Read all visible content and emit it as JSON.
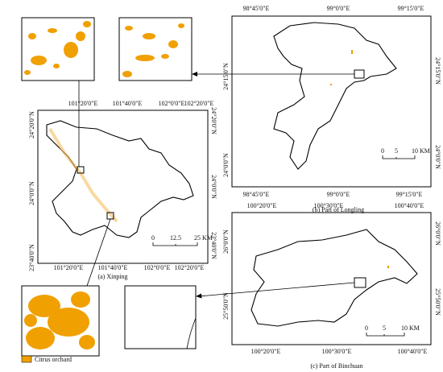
{
  "panels": [
    {
      "caption": "(a) Xinping",
      "top_labels": [
        "101°20'0\"E",
        "101°40'0\"E",
        "102°0'0\"E",
        "102°20'0\"E"
      ],
      "bottom_labels": [
        "101°20'0\"E",
        "101°40'0\"E",
        "102°0'0\"E",
        "102°20'0\"E"
      ],
      "left_labels": [
        "24°20'0\"N",
        "24°0'0\"N",
        "23°40'0\"N"
      ],
      "right_labels": [
        "24°20'0\"N",
        "24°0'0\"N",
        "23°40'0\"N"
      ],
      "scale_labels": [
        "0",
        "12.5",
        "25 KM"
      ]
    },
    {
      "caption": "(b) Part of Longling",
      "top_labels": [
        "98°45'0\"E",
        "99°0'0\"E",
        "99°15'0\"E"
      ],
      "bottom_labels": [
        "98°45'0\"E",
        "99°0'0\"E",
        "99°15'0\"E"
      ],
      "left_labels": [
        "24°15'0\"N",
        "24°0'0\"N"
      ],
      "right_labels": [
        "24°15'0\"N",
        "24°0'0\"N"
      ],
      "scale_labels": [
        "0",
        "5",
        "10 KM"
      ]
    },
    {
      "caption": "(c) Part of Binchuan",
      "top_labels": [
        "100°20'0\"E",
        "100°30'0\"E",
        "100°40'0\"E"
      ],
      "bottom_labels": [
        "100°20'0\"E",
        "100°30'0\"E",
        "100°40'0\"E"
      ],
      "left_labels": [
        "26°0'0\"N",
        "25°50'0\"N"
      ],
      "right_labels": [
        "26°0'0\"N",
        "25°50'0\"N"
      ],
      "scale_labels": [
        "0",
        "5",
        "10 KM"
      ]
    }
  ],
  "legend": {
    "label": "Citrus orchard"
  }
}
